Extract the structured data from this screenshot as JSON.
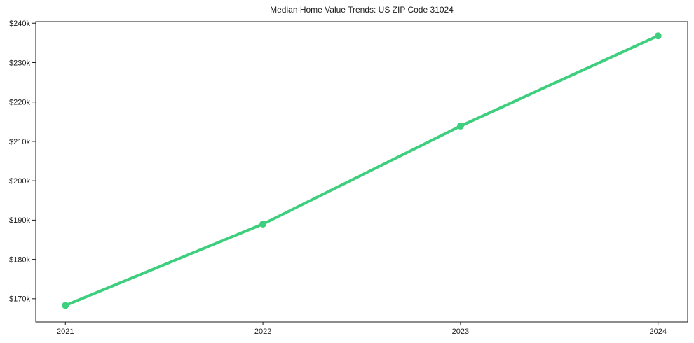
{
  "page": {
    "background": "#ffffff"
  },
  "chart_data": {
    "type": "line",
    "title": "Median Home Value Trends: US ZIP Code 31024",
    "categories": [
      "2021",
      "2022",
      "2023",
      "2024"
    ],
    "series": [
      {
        "values": [
          168300,
          189000,
          213900,
          236800
        ],
        "color": "#3ecf7e",
        "line_width": 4,
        "marker": "circle",
        "marker_radius": 5
      }
    ],
    "xlabel": "",
    "ylabel": "",
    "ylim": [
      164100,
      240400
    ],
    "yticks": [
      170000,
      180000,
      190000,
      200000,
      210000,
      220000,
      230000,
      240000
    ],
    "ytick_labels": [
      "$170k",
      "$180k",
      "$190k",
      "$200k",
      "$210k",
      "$220k",
      "$230k",
      "$240k"
    ],
    "x_margin_frac": 0.05,
    "grid": false,
    "legend": false,
    "axis_color": "#1a1a1a",
    "tick_label_color": "#1a1a1a"
  }
}
